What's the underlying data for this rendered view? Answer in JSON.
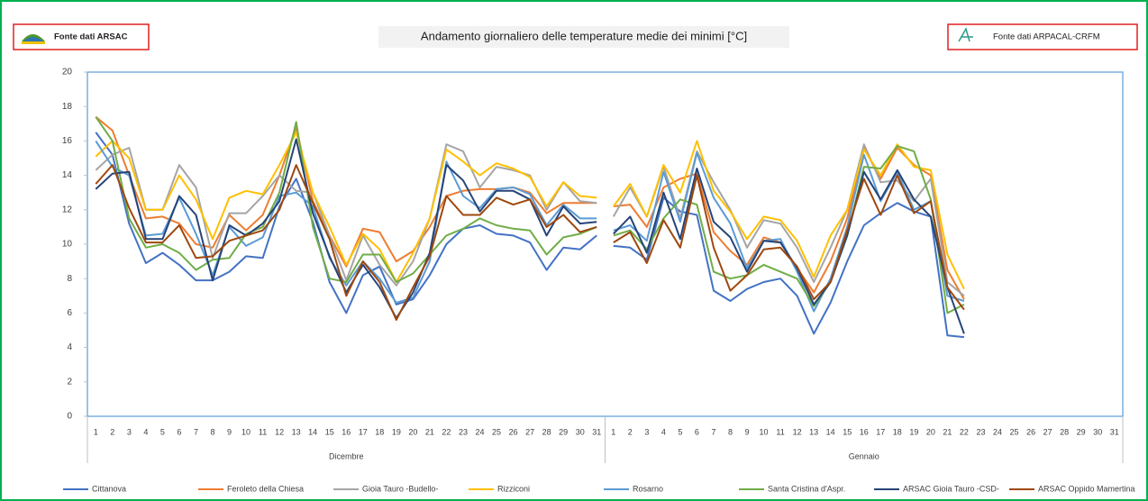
{
  "chart_data": {
    "type": "line",
    "title": "Andamento giornaliero delle temperature medie dei minimi  [°C]",
    "source_left": "Fonte dati ARSAC",
    "source_right": "Fonte dati ARPACAL-CRFM",
    "category_groups": [
      "Dicembre",
      "Gennaio"
    ],
    "categories": [
      "1",
      "2",
      "3",
      "4",
      "5",
      "6",
      "7",
      "8",
      "9",
      "10",
      "11",
      "12",
      "13",
      "14",
      "15",
      "16",
      "17",
      "18",
      "19",
      "20",
      "21",
      "22",
      "23",
      "24",
      "25",
      "26",
      "27",
      "28",
      "29",
      "30",
      "31",
      "1",
      "2",
      "3",
      "4",
      "5",
      "6",
      "7",
      "8",
      "9",
      "10",
      "11",
      "12",
      "13",
      "14",
      "15",
      "16",
      "17",
      "18",
      "19",
      "20",
      "21",
      "22",
      "23",
      "24",
      "25",
      "26",
      "27",
      "28",
      "29",
      "30",
      "31"
    ],
    "ylim": [
      0,
      20
    ],
    "yticks": [
      0,
      2,
      4,
      6,
      8,
      10,
      12,
      14,
      16,
      18,
      20
    ],
    "grid": false,
    "legend": "bottom",
    "series": [
      {
        "name": "Cittanova",
        "color": "#4472c4",
        "values": [
          16.5,
          15.2,
          11.2,
          8.9,
          9.5,
          8.8,
          7.9,
          7.9,
          8.4,
          9.3,
          9.2,
          12.2,
          13.8,
          11.3,
          7.8,
          6.0,
          8.2,
          8.7,
          6.5,
          6.8,
          8.2,
          10.0,
          10.9,
          11.1,
          10.6,
          10.5,
          10.1,
          8.5,
          9.8,
          9.7,
          10.5,
          9.9,
          9.8,
          9.1,
          12.7,
          11.9,
          11.7,
          7.3,
          6.7,
          7.4,
          7.8,
          8.0,
          7.0,
          4.8,
          6.6,
          9.0,
          11.1,
          11.8,
          12.4,
          11.9,
          11.6,
          4.7,
          4.6,
          null,
          null,
          null,
          null,
          null,
          null,
          null,
          null,
          null
        ]
      },
      {
        "name": "Feroleto della Chiesa",
        "color": "#ed7d31",
        "values": [
          17.4,
          16.6,
          14.0,
          11.5,
          11.6,
          11.2,
          10.0,
          9.8,
          11.7,
          10.8,
          11.7,
          14.0,
          16.8,
          12.5,
          10.5,
          8.7,
          10.9,
          10.7,
          9.0,
          9.6,
          11.0,
          12.8,
          13.1,
          13.2,
          13.2,
          13.3,
          13.0,
          11.8,
          12.4,
          12.4,
          12.4,
          12.2,
          12.3,
          11.0,
          13.3,
          13.8,
          14.1,
          10.7,
          9.6,
          8.8,
          10.4,
          10.1,
          8.6,
          7.2,
          9.0,
          11.5,
          15.6,
          13.8,
          15.6,
          14.6,
          14.0,
          8.5,
          6.8,
          null,
          null,
          null,
          null,
          null,
          null,
          null,
          null,
          null
        ]
      },
      {
        "name": "Gioia Tauro -Budello-",
        "color": "#a5a5a5",
        "values": [
          14.3,
          15.2,
          15.6,
          12.0,
          12.0,
          14.6,
          13.3,
          9.2,
          11.8,
          11.8,
          12.8,
          14.0,
          13.1,
          13.0,
          10.5,
          7.9,
          10.5,
          8.8,
          7.6,
          9.0,
          11.5,
          15.8,
          15.4,
          13.3,
          14.5,
          14.3,
          14.0,
          12.0,
          13.6,
          12.5,
          12.4,
          11.6,
          13.3,
          11.6,
          14.5,
          11.5,
          15.4,
          13.6,
          12.0,
          9.8,
          11.4,
          11.2,
          9.8,
          7.8,
          9.8,
          12.0,
          15.8,
          13.6,
          13.7,
          12.5,
          13.8,
          7.8,
          7.0,
          null,
          null,
          null,
          null,
          null,
          null,
          null,
          null,
          null
        ]
      },
      {
        "name": "Rizziconi",
        "color": "#ffc000",
        "values": [
          15.1,
          16.0,
          15.0,
          12.0,
          12.0,
          14.0,
          12.6,
          10.3,
          12.7,
          13.1,
          12.9,
          14.6,
          16.5,
          13.0,
          11.0,
          8.8,
          10.6,
          9.7,
          7.8,
          9.5,
          11.5,
          15.5,
          14.8,
          14.0,
          14.7,
          14.4,
          13.9,
          12.2,
          13.6,
          12.8,
          12.7,
          12.2,
          13.5,
          11.6,
          14.6,
          13.0,
          16.0,
          13.1,
          11.9,
          10.3,
          11.6,
          11.4,
          10.2,
          8.1,
          10.5,
          12.0,
          15.5,
          14.0,
          15.8,
          14.5,
          14.3,
          9.4,
          7.4,
          null,
          null,
          null,
          null,
          null,
          null,
          null,
          null,
          null
        ]
      },
      {
        "name": "Rosarno",
        "color": "#5b9bd5",
        "values": [
          16.0,
          14.5,
          14.0,
          10.5,
          10.6,
          12.7,
          10.6,
          8.2,
          11.0,
          9.9,
          10.4,
          12.8,
          13.0,
          12.2,
          9.2,
          7.6,
          9.0,
          8.0,
          6.6,
          6.9,
          9.0,
          14.8,
          12.8,
          12.1,
          13.2,
          13.3,
          12.9,
          11.1,
          12.3,
          11.5,
          11.5,
          10.8,
          11.1,
          10.2,
          14.2,
          11.3,
          15.3,
          12.7,
          11.2,
          8.6,
          10.2,
          10.3,
          8.4,
          6.1,
          8.0,
          11.0,
          15.2,
          12.5,
          14.2,
          12.0,
          12.5,
          7.0,
          6.7,
          null,
          null,
          null,
          null,
          null,
          null,
          null,
          null,
          null
        ]
      },
      {
        "name": "Santa Cristina d'Aspr.",
        "color": "#70ad47",
        "values": [
          17.4,
          16.0,
          11.5,
          9.8,
          10.0,
          9.5,
          8.5,
          9.1,
          9.2,
          10.6,
          11.0,
          13.0,
          17.1,
          11.0,
          8.0,
          7.8,
          9.4,
          9.4,
          7.8,
          8.3,
          9.4,
          10.5,
          10.9,
          11.5,
          11.1,
          10.9,
          10.8,
          9.4,
          10.4,
          10.6,
          11.0,
          10.5,
          10.8,
          9.7,
          11.5,
          12.6,
          12.3,
          8.4,
          8.0,
          8.2,
          8.8,
          8.4,
          8.0,
          6.4,
          7.8,
          10.5,
          14.5,
          14.4,
          15.7,
          15.4,
          12.6,
          6.0,
          6.5,
          null,
          null,
          null,
          null,
          null,
          null,
          null,
          null,
          null
        ]
      },
      {
        "name": "ARSAC Gioia Tauro -CSD-",
        "color": "#264478",
        "values": [
          13.2,
          14.1,
          14.2,
          10.3,
          10.3,
          12.8,
          11.7,
          7.9,
          11.1,
          10.5,
          11.2,
          12.5,
          16.1,
          11.8,
          9.3,
          7.2,
          8.8,
          7.5,
          5.7,
          7.2,
          9.5,
          14.6,
          13.7,
          11.9,
          13.1,
          13.1,
          12.6,
          10.5,
          12.2,
          11.2,
          11.3,
          10.6,
          11.6,
          9.5,
          13.0,
          10.3,
          14.4,
          11.3,
          10.4,
          8.4,
          10.2,
          10.1,
          8.6,
          6.5,
          7.8,
          10.5,
          14.2,
          12.6,
          14.3,
          12.6,
          11.6,
          7.5,
          4.8,
          null,
          null,
          null,
          null,
          null,
          null,
          null,
          null,
          null
        ]
      },
      {
        "name": "ARSAC Oppido Mamertina",
        "color": "#9e480e",
        "values": [
          13.5,
          14.6,
          12.1,
          10.1,
          10.1,
          11.1,
          9.2,
          9.3,
          10.2,
          10.5,
          10.8,
          12.0,
          14.6,
          12.4,
          10.3,
          7.0,
          9.0,
          7.8,
          5.6,
          7.5,
          9.3,
          12.8,
          11.7,
          11.7,
          12.7,
          12.3,
          12.6,
          11.0,
          11.7,
          10.7,
          11.0,
          10.1,
          10.7,
          8.9,
          11.4,
          9.8,
          14.0,
          9.8,
          7.3,
          8.2,
          9.7,
          9.8,
          8.7,
          6.8,
          7.8,
          10.8,
          13.8,
          11.7,
          14.0,
          11.8,
          12.5,
          7.5,
          6.2,
          null,
          null,
          null,
          null,
          null,
          null,
          null,
          null,
          null
        ]
      }
    ]
  }
}
